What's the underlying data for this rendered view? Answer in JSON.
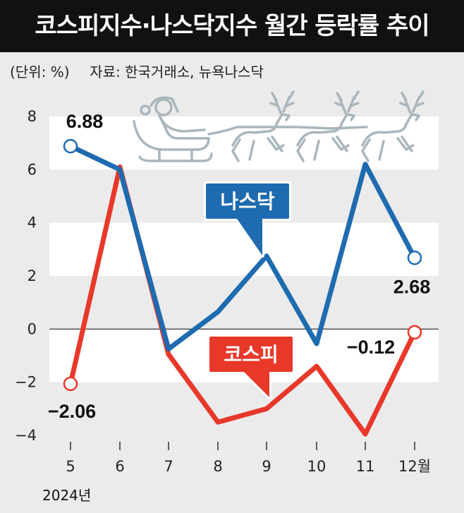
{
  "header": {
    "title": "코스피지수·나스닥지수 월간 등락률 추이",
    "unit": "(단위: %)",
    "source": "자료: 한국거래소, 뉴욕나스닥"
  },
  "colors": {
    "nasdaq": "#1e6bb0",
    "kospi": "#e8382a",
    "band": "#ffffff",
    "background": "#ebebeb",
    "title_bg": "#111111",
    "decoration": "#a9b6bd"
  },
  "decoration": {
    "icon": "santa-sleigh-reindeer-icon"
  },
  "chart_data": {
    "type": "line",
    "categories": [
      "5",
      "6",
      "7",
      "8",
      "9",
      "10",
      "11",
      "12월"
    ],
    "year_label": "2024년",
    "ylim": [
      -4,
      8
    ],
    "yticks": [
      8,
      6,
      4,
      2,
      0,
      -2,
      -4
    ],
    "ytick_labels": [
      "8",
      "6",
      "4",
      "2",
      "0",
      "−2",
      "−4"
    ],
    "grid": "alternating horizontal bands",
    "series": [
      {
        "name": "나스닥",
        "color": "#1e6bb0",
        "values": [
          6.88,
          6.0,
          -0.75,
          0.65,
          2.75,
          -0.55,
          6.2,
          2.68
        ],
        "labels": [
          {
            "index": 0,
            "text": "6.88"
          },
          {
            "index": 7,
            "text": "2.68"
          }
        ]
      },
      {
        "name": "코스피",
        "color": "#e8382a",
        "values": [
          -2.06,
          6.1,
          -0.95,
          -3.5,
          -3.0,
          -1.4,
          -3.95,
          -0.12
        ],
        "labels": [
          {
            "index": 0,
            "text": "−2.06"
          },
          {
            "index": 7,
            "text": "−0.12"
          }
        ]
      }
    ]
  }
}
